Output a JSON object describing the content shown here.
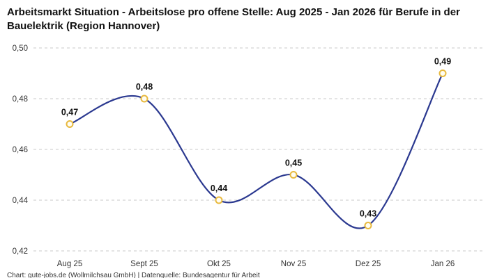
{
  "title": "Arbeitsmarkt Situation - Arbeitslose pro offene Stelle: Aug 2025 - Jan 2026 für Berufe in der Bauelektrik (Region Hannover)",
  "footer": "Chart: gute-jobs.de (Wollmilchsau GmbH) | Datenquelle: Bundesagentur für Arbeit",
  "chart_data": {
    "type": "line",
    "title": "Arbeitsmarkt Situation - Arbeitslose pro offene Stelle: Aug 2025 - Jan 2026 für Berufe in der Bauelektrik (Region Hannover)",
    "categories": [
      "Aug 25",
      "Sept 25",
      "Okt 25",
      "Nov 25",
      "Dez 25",
      "Jan 26"
    ],
    "values": [
      0.47,
      0.48,
      0.44,
      0.45,
      0.43,
      0.49
    ],
    "point_labels": [
      "0,47",
      "0,48",
      "0,44",
      "0,45",
      "0,43",
      "0,49"
    ],
    "ylim": [
      0.42,
      0.5
    ],
    "yticks": [
      0.42,
      0.44,
      0.46,
      0.48,
      0.5
    ],
    "ytick_labels": [
      "0,42",
      "0,44",
      "0,46",
      "0,48",
      "0,50"
    ],
    "xlabel": "",
    "ylabel": "",
    "grid": "horizontal-dashed",
    "legend": "none",
    "colors": {
      "line": "#2b3990",
      "marker_fill": "#fffdf2",
      "marker_stroke": "#e8b93e",
      "grid": "#c9c9c9",
      "text": "#111111"
    }
  }
}
